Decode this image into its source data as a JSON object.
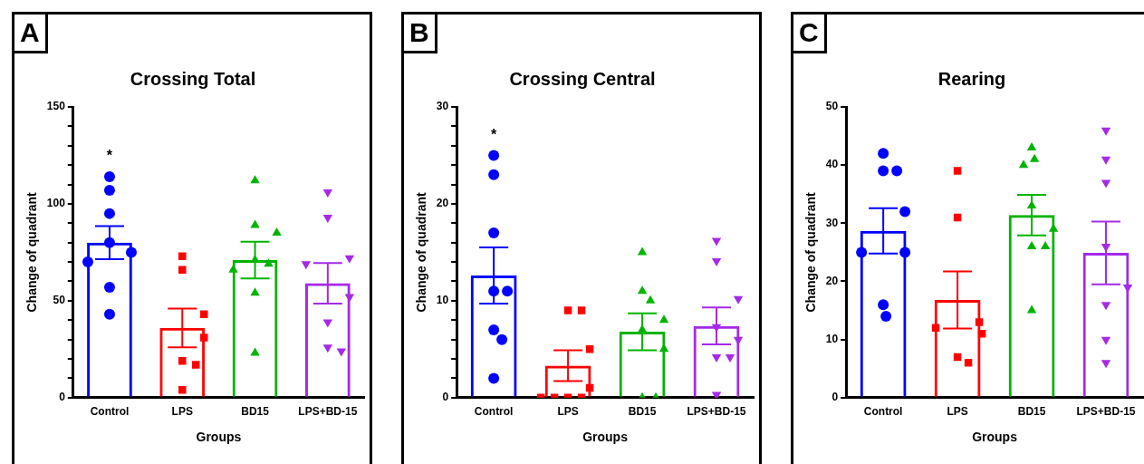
{
  "chart_data": [
    {
      "type": "bar",
      "title": "Crossing Total",
      "xlabel": "Groups",
      "ylabel": "Change of quadrant",
      "categories": [
        "Control",
        "LPS",
        "BD15",
        "LPS+BD-15"
      ],
      "ylim": [
        0,
        150
      ],
      "yticks": [
        0,
        {
          "value": 10,
          "label": null
        },
        {
          "value": 20,
          "label": null
        },
        {
          "value": 30,
          "label": null
        },
        {
          "value": 40,
          "label": null
        },
        50,
        {
          "value": 60,
          "label": null
        },
        {
          "value": 70,
          "label": null
        },
        {
          "value": 80,
          "label": null
        },
        {
          "value": 90,
          "label": null
        },
        100,
        {
          "value": 110,
          "label": null
        },
        {
          "value": 120,
          "label": null
        },
        {
          "value": 130,
          "label": null
        },
        {
          "value": 140,
          "label": null
        },
        150
      ],
      "grid": false,
      "legend": false,
      "annotations": [
        "A",
        "*"
      ],
      "series": [
        {
          "type": "bar",
          "colors": [
            "#0000ff",
            "#ff0000",
            "#00b400",
            "#a52ae6"
          ],
          "values": [
            80,
            36,
            71,
            59
          ],
          "errors": [
            8.5,
            10,
            9.5,
            10.5
          ]
        },
        {
          "type": "scatter",
          "color": "#0000ff",
          "marker": "circle",
          "x": [
            "Control",
            "Control",
            "Control",
            "Control",
            "Control",
            "Control",
            "Control",
            "Control"
          ],
          "values": [
            114,
            107,
            95,
            80,
            75,
            70,
            57,
            43
          ]
        },
        {
          "type": "scatter",
          "color": "#ff0000",
          "marker": "square",
          "x": [
            "LPS",
            "LPS",
            "LPS",
            "LPS",
            "LPS",
            "LPS",
            "LPS"
          ],
          "values": [
            73,
            66,
            43,
            31,
            19,
            17,
            4
          ]
        },
        {
          "type": "scatter",
          "color": "#00b400",
          "marker": "triangle",
          "x": [
            "BD15",
            "BD15",
            "BD15",
            "BD15",
            "BD15",
            "BD15",
            "BD15",
            "BD15"
          ],
          "values": [
            112,
            89,
            85,
            71,
            69,
            66,
            54,
            23
          ]
        },
        {
          "type": "scatter",
          "color": "#a52ae6",
          "marker": "triangle-down",
          "x": [
            "LPS+BD-15",
            "LPS+BD-15",
            "LPS+BD-15",
            "LPS+BD-15",
            "LPS+BD-15",
            "LPS+BD-15",
            "LPS+BD-15",
            "LPS+BD-15"
          ],
          "values": [
            106,
            93,
            72,
            69,
            52,
            39,
            26,
            24
          ]
        }
      ]
    },
    {
      "type": "bar",
      "title": "Crossing Central",
      "xlabel": "Groups",
      "ylabel": "Change of quadrant",
      "categories": [
        "Control",
        "LPS",
        "BD15",
        "LPS+BD-15"
      ],
      "ylim": [
        0,
        30
      ],
      "yticks": [
        0,
        {
          "value": 2,
          "label": null
        },
        {
          "value": 4,
          "label": null
        },
        {
          "value": 6,
          "label": null
        },
        {
          "value": 8,
          "label": null
        },
        10,
        {
          "value": 12,
          "label": null
        },
        {
          "value": 14,
          "label": null
        },
        {
          "value": 16,
          "label": null
        },
        {
          "value": 18,
          "label": null
        },
        20,
        {
          "value": 22,
          "label": null
        },
        {
          "value": 24,
          "label": null
        },
        {
          "value": 26,
          "label": null
        },
        {
          "value": 28,
          "label": null
        },
        30
      ],
      "grid": false,
      "legend": false,
      "annotations": [
        "B",
        "*"
      ],
      "series": [
        {
          "type": "bar",
          "colors": [
            "#0000ff",
            "#ff0000",
            "#00b400",
            "#a52ae6"
          ],
          "values": [
            12.6,
            3.3,
            6.8,
            7.4
          ],
          "errors": [
            2.9,
            1.6,
            1.9,
            1.9
          ]
        },
        {
          "type": "scatter",
          "color": "#0000ff",
          "marker": "circle",
          "x": [
            "Control",
            "Control",
            "Control",
            "Control",
            "Control",
            "Control",
            "Control",
            "Control"
          ],
          "values": [
            25,
            23,
            17,
            11,
            11,
            7,
            6,
            2
          ]
        },
        {
          "type": "scatter",
          "color": "#ff0000",
          "marker": "square",
          "x": [
            "LPS",
            "LPS",
            "LPS",
            "LPS",
            "LPS",
            "LPS",
            "LPS",
            "LPS"
          ],
          "values": [
            9,
            9,
            5,
            1,
            0,
            0,
            0,
            0
          ]
        },
        {
          "type": "scatter",
          "color": "#00b400",
          "marker": "triangle",
          "x": [
            "BD15",
            "BD15",
            "BD15",
            "BD15",
            "BD15",
            "BD15",
            "BD15",
            "BD15"
          ],
          "values": [
            15,
            11,
            10,
            8,
            7,
            5,
            0,
            0
          ]
        },
        {
          "type": "scatter",
          "color": "#a52ae6",
          "marker": "triangle-down",
          "x": [
            "LPS+BD-15",
            "LPS+BD-15",
            "LPS+BD-15",
            "LPS+BD-15",
            "LPS+BD-15",
            "LPS+BD-15",
            "LPS+BD-15",
            "LPS+BD-15"
          ],
          "values": [
            16.2,
            14.1,
            10.2,
            7.3,
            6,
            4.2,
            4.2,
            0.3
          ]
        }
      ]
    },
    {
      "type": "bar",
      "title": "Rearing",
      "xlabel": "Groups",
      "ylabel": "Change of quadrant",
      "categories": [
        "Control",
        "LPS",
        "BD15",
        "LPS+BD-15"
      ],
      "ylim": [
        0,
        50
      ],
      "yticks": [
        0,
        10,
        20,
        30,
        40,
        50
      ],
      "grid": false,
      "legend": false,
      "annotations": [
        "C"
      ],
      "series": [
        {
          "type": "bar",
          "colors": [
            "#0000ff",
            "#ff0000",
            "#00b400",
            "#a52ae6"
          ],
          "values": [
            28.7,
            16.8,
            31.4,
            24.9
          ],
          "errors": [
            3.9,
            4.9,
            3.5,
            5.4
          ]
        },
        {
          "type": "scatter",
          "color": "#0000ff",
          "marker": "circle",
          "x": [
            "Control",
            "Control",
            "Control",
            "Control",
            "Control",
            "Control",
            "Control",
            "Control"
          ],
          "values": [
            42,
            39,
            39,
            32,
            25,
            25,
            16,
            14
          ]
        },
        {
          "type": "scatter",
          "color": "#ff0000",
          "marker": "square",
          "x": [
            "LPS",
            "LPS",
            "LPS",
            "LPS",
            "LPS",
            "LPS",
            "LPS"
          ],
          "values": [
            39,
            31,
            13,
            12,
            11,
            7,
            6
          ]
        },
        {
          "type": "scatter",
          "color": "#00b400",
          "marker": "triangle",
          "x": [
            "BD15",
            "BD15",
            "BD15",
            "BD15",
            "BD15",
            "BD15",
            "BD15",
            "BD15"
          ],
          "values": [
            43,
            41,
            40,
            33,
            29,
            26,
            26,
            15
          ]
        },
        {
          "type": "scatter",
          "color": "#a52ae6",
          "marker": "triangle-down",
          "x": [
            "LPS+BD-15",
            "LPS+BD-15",
            "LPS+BD-15",
            "LPS+BD-15",
            "LPS+BD-15",
            "LPS+BD-15",
            "LPS+BD-15",
            "LPS+BD-15"
          ],
          "values": [
            46,
            41,
            37,
            26,
            19,
            16,
            10,
            6
          ]
        }
      ]
    }
  ]
}
